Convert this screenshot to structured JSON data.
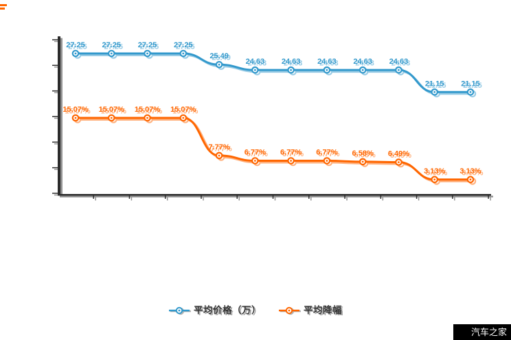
{
  "watermark": {
    "text": "汽车之家"
  },
  "chart_data": {
    "type": "line",
    "title": "",
    "legend_position": "bottom",
    "grid": false,
    "x_axis": {
      "labels_visible": false,
      "tick_count": 12
    },
    "y_axis": {
      "labels_visible": false,
      "tick_count": 7
    },
    "colors": {
      "axis": "#2b2b2b",
      "background": "#ffffff",
      "legend_text": "#333333",
      "watermark_bg": "#000000",
      "watermark_text": "#ffffff"
    },
    "series": [
      {
        "name": "平均价格（万）",
        "color": "#3399cc",
        "marker": "circle",
        "values": [
          27.25,
          27.25,
          27.25,
          27.25,
          25.49,
          24.63,
          24.63,
          24.63,
          24.63,
          24.63,
          21.15,
          21.15
        ],
        "labels": [
          "27.25",
          "27.25",
          "27.25",
          "27.25",
          "25.49",
          "24.63",
          "24.63",
          "24.63",
          "24.63",
          "24.63",
          "21.15",
          "21.15"
        ]
      },
      {
        "name": "平均降幅",
        "color": "#ff6600",
        "marker": "circle",
        "values": [
          15.07,
          15.07,
          15.07,
          15.07,
          7.77,
          6.77,
          6.77,
          6.77,
          6.58,
          6.49,
          3.13,
          3.13
        ],
        "labels": [
          "15.07%",
          "15.07%",
          "15.07%",
          "15.07%",
          "7.77%",
          "6.77%",
          "6.77%",
          "6.77%",
          "6.58%",
          "6.49%",
          "3.13%",
          "3.13%"
        ]
      }
    ]
  }
}
